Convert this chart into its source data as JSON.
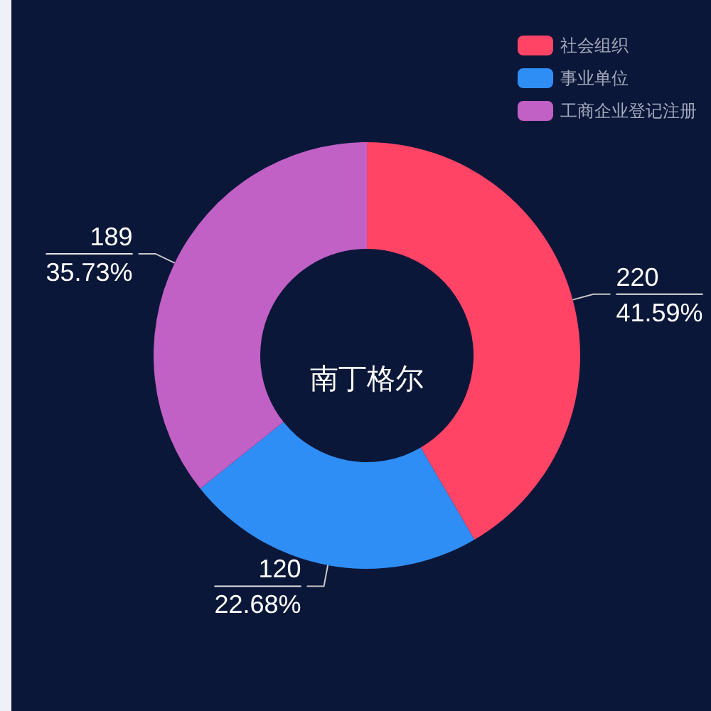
{
  "chart_data": {
    "type": "donut",
    "title": "南丁格尔",
    "categories": [
      "社会组织",
      "事业单位",
      "工商企业登记注册"
    ],
    "values": [
      220,
      120,
      189
    ],
    "colors": [
      "#ff4466",
      "#2f8ef5",
      "#c160c5"
    ],
    "value_labels": [
      "220\n41.59%",
      "120\n22.68%",
      "189\n35.73%"
    ],
    "legend": "top right"
  }
}
